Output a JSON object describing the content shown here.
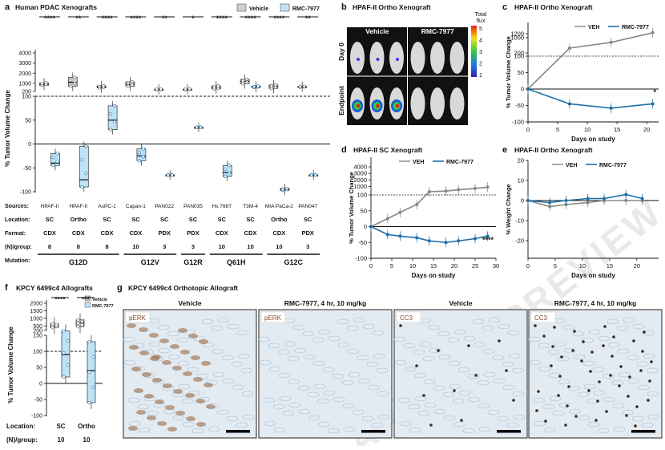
{
  "watermark": "ARTICLE PREVIEW",
  "panels": {
    "a": {
      "letter": "a",
      "title": "Human PDAC Xenografts",
      "legend": [
        "Vehicle",
        "RMC-7977"
      ],
      "ylabel": "% Tumor Volume Change"
    },
    "b": {
      "letter": "b",
      "title": "HPAF-II Ortho Xenograft",
      "cols": [
        "Vehicle",
        "RMC-7977"
      ],
      "rows": [
        "Day 0",
        "Endpoint"
      ],
      "colorbar_title": [
        "Total",
        "flux"
      ],
      "colorbar_ticks": [
        "5",
        "4",
        "3",
        "2",
        "1"
      ]
    },
    "c": {
      "letter": "c",
      "title": "HPAF-II Ortho Xenograft",
      "legend": [
        "VEH",
        "RMC-7977"
      ],
      "ylabel": "% Tumor Volume Change",
      "xlabel": "Days on study",
      "sig": "*"
    },
    "d": {
      "letter": "d",
      "title": "HPAF-II SC Xenograft",
      "legend": [
        "VEH",
        "RMC-7977"
      ],
      "ylabel": "% Tumor Volume Change",
      "xlabel": "Days on study",
      "sig": "****"
    },
    "e": {
      "letter": "e",
      "title": "HPAF-II Ortho Xenograft",
      "legend": [
        "VEH",
        "RMC-7977"
      ],
      "ylabel": "% Weight Change",
      "xlabel": "Days on study"
    },
    "f": {
      "letter": "f",
      "title": "KPCY 6499c4 Allografts",
      "legend": [
        "Vehicle",
        "RMC-7977"
      ],
      "ylabel": "% Tumor Volume Change",
      "row_labels": [
        "Location:",
        "(N)/group:"
      ],
      "locations": [
        "SC",
        "Ortho"
      ],
      "n": [
        "10",
        "10"
      ],
      "sig": [
        "****",
        "***"
      ]
    },
    "g": {
      "letter": "g",
      "title": "KPCY 6499c4 Orthotopic Allograft",
      "images": [
        {
          "title": "Vehicle",
          "stain": "pERK"
        },
        {
          "title": "RMC-7977, 4 hr, 10 mg/kg",
          "stain": "pERK"
        },
        {
          "title": "Vehicle",
          "stain": "CC3"
        },
        {
          "title": "RMC-7977, 4 hr, 10 mg/kg",
          "stain": "CC3"
        }
      ]
    }
  },
  "table_a": {
    "row_labels": [
      "Sources:",
      "Location:",
      "Format:",
      "(N)/group:",
      "Mutation:"
    ],
    "sources": [
      "HPAF-II",
      "HPAF-II",
      "AsPC-1",
      "Capan-1",
      "PAN022",
      "PAN035",
      "Hs 766T",
      "T3M-4",
      "MIA PaCa-2",
      "PAN047"
    ],
    "locations": [
      "SC",
      "Ortho",
      "SC",
      "SC",
      "SC",
      "SC",
      "SC",
      "SC",
      "Ortho",
      "SC"
    ],
    "formats": [
      "CDX",
      "CDX",
      "CDX",
      "CDX",
      "PDX",
      "PDX",
      "CDX",
      "CDX",
      "CDX",
      "PDX"
    ],
    "n": [
      "8",
      "8",
      "8",
      "10",
      "3",
      "3",
      "10",
      "10",
      "10",
      "3"
    ],
    "mutations": [
      {
        "label": "G12D",
        "span": [
          0,
          2
        ]
      },
      {
        "label": "G12V",
        "span": [
          3,
          4
        ]
      },
      {
        "label": "G12R",
        "span": [
          5,
          5
        ]
      },
      {
        "label": "Q61H",
        "span": [
          6,
          7
        ]
      },
      {
        "label": "G12C",
        "span": [
          8,
          9
        ]
      }
    ],
    "sig": [
      "****",
      "**",
      "****",
      "****",
      "**",
      "*",
      "****",
      "****",
      "****",
      "**"
    ]
  },
  "chart_data": [
    {
      "panel": "a",
      "type": "box",
      "title": "Human PDAC Xenografts",
      "ylabel": "% Tumor Volume Change",
      "yaxis": {
        "lower_ticks": [
          -100,
          -50,
          0,
          50,
          100
        ],
        "upper_ticks": [
          200,
          1000,
          2000,
          3000,
          4000
        ],
        "break_at": 100
      },
      "categories": [
        "HPAF-II SC",
        "HPAF-II Ortho",
        "AsPC-1 SC",
        "Capan-1 SC",
        "PAN022 SC",
        "PAN035 SC",
        "Hs 766T SC",
        "T3M-4 SC",
        "MIA PaCa-2 Ortho",
        "PAN047 SC"
      ],
      "series": [
        {
          "name": "Vehicle",
          "median": [
            900,
            1100,
            650,
            900,
            400,
            400,
            600,
            1200,
            700,
            650
          ],
          "q1": [
            800,
            700,
            550,
            700,
            380,
            380,
            450,
            950,
            500,
            620
          ],
          "q3": [
            1050,
            1600,
            750,
            1150,
            430,
            430,
            750,
            1400,
            850,
            700
          ]
        },
        {
          "name": "RMC-7977",
          "median": [
            -40,
            -75,
            50,
            -25,
            -65,
            35,
            -60,
            650,
            -95,
            -65
          ],
          "q1": [
            -45,
            -90,
            30,
            -35,
            -65,
            35,
            -68,
            600,
            -97,
            -65
          ],
          "q3": [
            -20,
            -5,
            80,
            -10,
            -65,
            35,
            -45,
            720,
            -93,
            -65
          ]
        }
      ]
    },
    {
      "panel": "c",
      "type": "line",
      "title": "HPAF-II Ortho Xenograft",
      "xlabel": "Days on study",
      "ylabel": "% Tumor Volume Change",
      "xlim": [
        0,
        22
      ],
      "yaxis": {
        "lower_ticks": [
          -100,
          -50,
          0,
          50,
          100
        ],
        "upper_ticks": [
          200,
          1000,
          1200
        ],
        "break_at": 100
      },
      "series": [
        {
          "name": "VEH",
          "x": [
            0,
            7,
            14,
            21
          ],
          "y": [
            0,
            450,
            750,
            1250
          ]
        },
        {
          "name": "RMC-7977",
          "x": [
            0,
            7,
            14,
            21
          ],
          "y": [
            0,
            -45,
            -58,
            -45
          ]
        }
      ]
    },
    {
      "panel": "d",
      "type": "line",
      "title": "HPAF-II SC Xenograft",
      "xlabel": "Days on study",
      "ylabel": "% Tumor Volume Change",
      "xlim": [
        0,
        30
      ],
      "yaxis": {
        "lower_ticks": [
          -100,
          -50,
          0,
          50,
          100
        ],
        "upper_ticks": [
          200,
          1000,
          2000,
          3000,
          4000
        ],
        "break_at": 100
      },
      "series": [
        {
          "name": "VEH",
          "x": [
            0,
            4,
            7,
            11,
            14,
            18,
            21,
            25,
            28
          ],
          "y": [
            0,
            25,
            45,
            70,
            200,
            300,
            500,
            700,
            900
          ]
        },
        {
          "name": "RMC-7977",
          "x": [
            0,
            4,
            7,
            11,
            14,
            18,
            21,
            25,
            28
          ],
          "y": [
            0,
            -25,
            -30,
            -35,
            -45,
            -50,
            -45,
            -38,
            -30
          ]
        }
      ]
    },
    {
      "panel": "e",
      "type": "line",
      "title": "HPAF-II Ortho Xenograft",
      "xlabel": "Days on study",
      "ylabel": "% Weight Change",
      "xlim": [
        0,
        24
      ],
      "ylim": [
        -20,
        20
      ],
      "series": [
        {
          "name": "VEH",
          "x": [
            0,
            4,
            7,
            11,
            14,
            18,
            21
          ],
          "y": [
            0,
            -3,
            -2,
            -1,
            0,
            0,
            0
          ]
        },
        {
          "name": "RMC-7977",
          "x": [
            0,
            4,
            7,
            11,
            14,
            18,
            21
          ],
          "y": [
            0,
            -1,
            0,
            1,
            1,
            3,
            1
          ]
        }
      ]
    },
    {
      "panel": "f",
      "type": "box",
      "title": "KPCY 6499c4 Allografts",
      "ylabel": "% Tumor Volume Change",
      "yaxis": {
        "lower_ticks": [
          -100,
          -50,
          0,
          50,
          100,
          150
        ],
        "upper_ticks": [
          200,
          500,
          1000,
          1500,
          2000
        ],
        "break_at": 200
      },
      "categories": [
        "SC",
        "Ortho"
      ],
      "series": [
        {
          "name": "Vehicle",
          "median": [
            500,
            700
          ],
          "q1": [
            400,
            450
          ],
          "q3": [
            650,
            900
          ]
        },
        {
          "name": "RMC-7977",
          "median": [
            90,
            40
          ],
          "q1": [
            20,
            -60
          ],
          "q3": [
            170,
            130
          ]
        }
      ]
    }
  ]
}
